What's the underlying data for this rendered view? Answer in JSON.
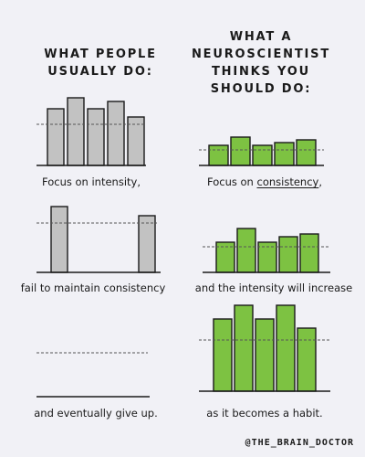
{
  "headers": {
    "left": "WHAT PEOPLE\nUSUALLY DO:",
    "right": "WHAT A\nNEUROSCIENTIST\nTHINKS YOU\nSHOULD DO:"
  },
  "captions": [
    {
      "text": "Focus on intensity,"
    },
    {
      "text_before": "Focus on ",
      "text_underlined": "consistency",
      "text_after": ","
    },
    {
      "text": "fail to maintain consistency"
    },
    {
      "text": "and the intensity will increase"
    },
    {
      "text": "and eventually give up."
    },
    {
      "text": "as it becomes a habit."
    }
  ],
  "credit": "@THE_BRAIN_DOCTOR",
  "colors": {
    "background": "#f1f1f6",
    "gray_bar_fill": "#c2c2c2",
    "green_bar_fill": "#7dc242",
    "outline": "#1a1a1a",
    "dashed_line": "#555555"
  },
  "chart_data": [
    {
      "type": "bar",
      "panel": "left-1",
      "bar_color": "gray",
      "categories": [
        "1",
        "2",
        "3",
        "4",
        "5"
      ],
      "values": [
        62,
        74,
        62,
        70,
        53
      ],
      "reference_line": 45,
      "ylim": [
        0,
        100
      ]
    },
    {
      "type": "bar",
      "panel": "left-2",
      "bar_color": "gray",
      "categories": [
        "1",
        "2",
        "3",
        "4",
        "5"
      ],
      "values": [
        72,
        null,
        null,
        62,
        null
      ],
      "reference_line": 54,
      "ylim": [
        0,
        100
      ]
    },
    {
      "type": "bar",
      "panel": "left-3",
      "bar_color": "gray",
      "categories": [
        "1",
        "2",
        "3",
        "4",
        "5"
      ],
      "values": [
        null,
        null,
        null,
        null,
        null
      ],
      "reference_line": 48,
      "ylim": [
        0,
        100
      ]
    },
    {
      "type": "bar",
      "panel": "right-1",
      "bar_color": "green",
      "categories": [
        "1",
        "2",
        "3",
        "4",
        "5"
      ],
      "values": [
        22,
        31,
        22,
        25,
        28
      ],
      "reference_line": 17,
      "ylim": [
        0,
        100
      ]
    },
    {
      "type": "bar",
      "panel": "right-2",
      "bar_color": "green",
      "categories": [
        "1",
        "2",
        "3",
        "4",
        "5"
      ],
      "values": [
        33,
        48,
        33,
        39,
        42
      ],
      "reference_line": 28,
      "ylim": [
        0,
        100
      ]
    },
    {
      "type": "bar",
      "panel": "right-3",
      "bar_color": "green",
      "categories": [
        "1",
        "2",
        "3",
        "4",
        "5"
      ],
      "values": [
        79,
        94,
        79,
        94,
        69
      ],
      "reference_line": 56,
      "ylim": [
        0,
        100
      ]
    }
  ]
}
